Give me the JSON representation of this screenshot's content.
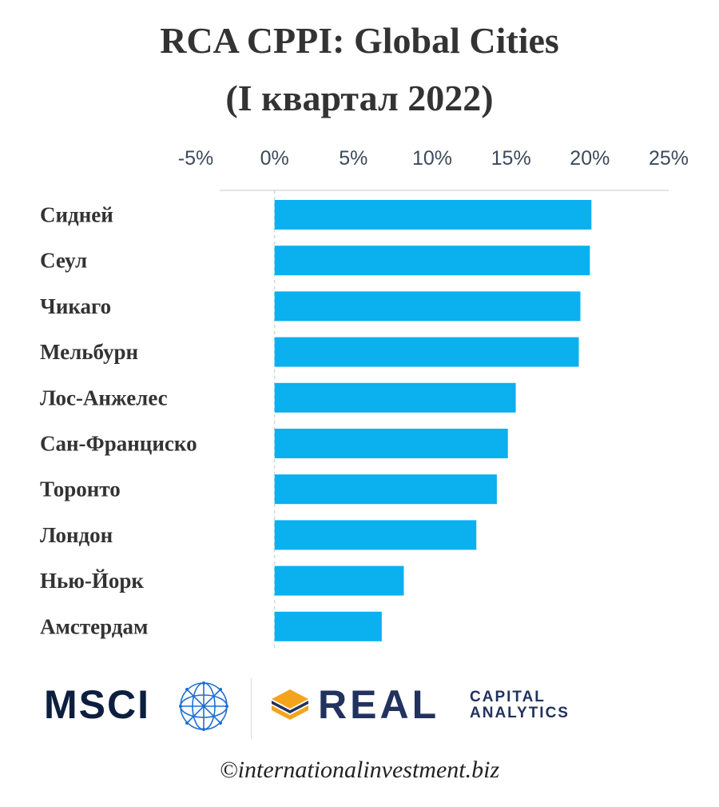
{
  "title_line1": "RCA CPPI: Global Cities",
  "title_line2": "(I квартал 2022)",
  "chart_data": {
    "type": "bar",
    "orientation": "horizontal",
    "categories": [
      "Сидней",
      "Сеул",
      "Чикаго",
      "Мельбурн",
      "Лос-Анжелес",
      "Сан-Франциско",
      "Торонто",
      "Лондон",
      "Нью-Йорк",
      "Амстердам"
    ],
    "values": [
      20.1,
      20.0,
      19.4,
      19.3,
      15.3,
      14.8,
      14.1,
      12.8,
      8.2,
      6.8
    ],
    "xlim": [
      -5,
      25
    ],
    "xticks": [
      "-5%",
      "0%",
      "5%",
      "10%",
      "15%",
      "20%",
      "25%"
    ],
    "xtick_values": [
      -5,
      0,
      5,
      10,
      15,
      20,
      25
    ],
    "tick_position": "top",
    "grid": false,
    "bar_color": "#0bb0ee"
  },
  "logos": {
    "msci": "MSCI",
    "real": "REAL",
    "capital": "CAPITAL",
    "analytics": "ANALYTICS",
    "globe_icon": "globe-icon",
    "rca_icon": "layers-icon"
  },
  "copyright": "©internationalinvestment.biz"
}
